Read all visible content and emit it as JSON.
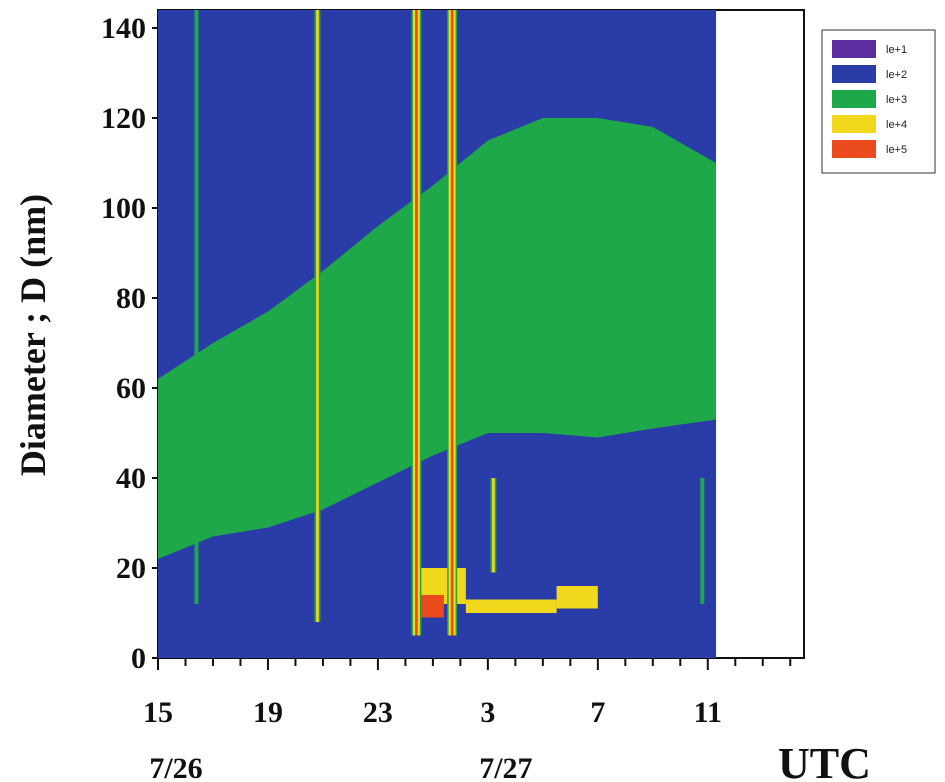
{
  "chart_data": {
    "type": "heatmap",
    "ylabel": "Diameter ; D (nm)",
    "xlabel": "UTC",
    "y_ticks": [
      0,
      20,
      40,
      60,
      80,
      100,
      120,
      140
    ],
    "ylim": [
      0,
      144
    ],
    "x_ticks": [
      "15",
      "19",
      "23",
      "3",
      "7",
      "11"
    ],
    "x_tick_hours": [
      15,
      19,
      23,
      27,
      31,
      35
    ],
    "xlim_hours": [
      15,
      38.5
    ],
    "data_end_hour": 35.3,
    "dates": [
      {
        "label": "7/26",
        "hour": 15
      },
      {
        "label": "7/27",
        "hour": 27
      }
    ],
    "legend": [
      {
        "label": "le+1",
        "color": "#5b2fa0"
      },
      {
        "label": "le+2",
        "color": "#2a3ca8"
      },
      {
        "label": "le+3",
        "color": "#1fa84a"
      },
      {
        "label": "le+4",
        "color": "#f2d81c"
      },
      {
        "label": "le+5",
        "color": "#ea4a1c"
      }
    ],
    "green_band": [
      {
        "hour": 15.0,
        "low": 22,
        "high": 62
      },
      {
        "hour": 17.0,
        "low": 27,
        "high": 70
      },
      {
        "hour": 19.0,
        "low": 29,
        "high": 77
      },
      {
        "hour": 21.0,
        "low": 33,
        "high": 86
      },
      {
        "hour": 23.0,
        "low": 39,
        "high": 96
      },
      {
        "hour": 25.0,
        "low": 45,
        "high": 105
      },
      {
        "hour": 27.0,
        "low": 50,
        "high": 115
      },
      {
        "hour": 29.0,
        "low": 50,
        "high": 120
      },
      {
        "hour": 31.0,
        "low": 49,
        "high": 120
      },
      {
        "hour": 33.0,
        "low": 51,
        "high": 118
      },
      {
        "hour": 35.3,
        "low": 53,
        "high": 110
      }
    ],
    "yellow_patches": [
      {
        "h0": 24.4,
        "h1": 26.2,
        "d0": 12,
        "d1": 20
      },
      {
        "h0": 26.2,
        "h1": 29.5,
        "d0": 10,
        "d1": 13
      },
      {
        "h0": 29.5,
        "h1": 31.0,
        "d0": 11,
        "d1": 16
      }
    ],
    "red_patches": [
      {
        "h0": 24.4,
        "h1": 25.4,
        "d0": 9,
        "d1": 14
      }
    ],
    "spikes": [
      {
        "hour": 16.4,
        "d0": 12,
        "d1": 144,
        "level": "le+3"
      },
      {
        "hour": 20.8,
        "d0": 8,
        "d1": 144,
        "level": "le+4"
      },
      {
        "hour": 24.4,
        "d0": 5,
        "d1": 144,
        "level": "le+5"
      },
      {
        "hour": 25.7,
        "d0": 5,
        "d1": 144,
        "level": "le+5"
      },
      {
        "hour": 27.2,
        "d0": 19,
        "d1": 40,
        "level": "le+4"
      },
      {
        "hour": 34.8,
        "d0": 12,
        "d1": 40,
        "level": "le+3"
      }
    ]
  }
}
